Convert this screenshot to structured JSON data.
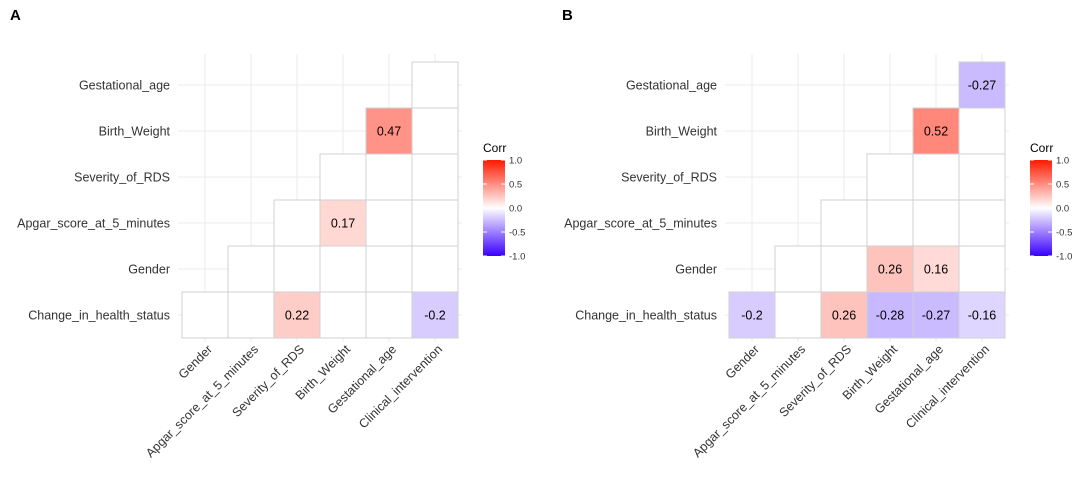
{
  "chart_data": [
    {
      "type": "heatmap",
      "panel_label": "A",
      "rows": [
        "Gestational_age",
        "Birth_Weight",
        "Severity_of_RDS",
        "Apgar_score_at_5_minutes",
        "Gender",
        "Change_in_health_status"
      ],
      "columns": [
        "Gender",
        "Apgar_score_at_5_minutes",
        "Severity_of_RDS",
        "Birth_Weight",
        "Gestational_age",
        "Clinical_intervention"
      ],
      "cells": [
        {
          "row": "Gestational_age",
          "col": "Clinical_intervention",
          "value": null,
          "label": ""
        },
        {
          "row": "Birth_Weight",
          "col": "Gestational_age",
          "value": 0.47,
          "label": "0.47"
        },
        {
          "row": "Birth_Weight",
          "col": "Clinical_intervention",
          "value": null,
          "label": ""
        },
        {
          "row": "Severity_of_RDS",
          "col": "Birth_Weight",
          "value": null,
          "label": ""
        },
        {
          "row": "Severity_of_RDS",
          "col": "Gestational_age",
          "value": null,
          "label": ""
        },
        {
          "row": "Severity_of_RDS",
          "col": "Clinical_intervention",
          "value": null,
          "label": ""
        },
        {
          "row": "Apgar_score_at_5_minutes",
          "col": "Severity_of_RDS",
          "value": null,
          "label": ""
        },
        {
          "row": "Apgar_score_at_5_minutes",
          "col": "Birth_Weight",
          "value": 0.17,
          "label": "0.17"
        },
        {
          "row": "Apgar_score_at_5_minutes",
          "col": "Gestational_age",
          "value": null,
          "label": ""
        },
        {
          "row": "Apgar_score_at_5_minutes",
          "col": "Clinical_intervention",
          "value": null,
          "label": ""
        },
        {
          "row": "Gender",
          "col": "Apgar_score_at_5_minutes",
          "value": null,
          "label": ""
        },
        {
          "row": "Gender",
          "col": "Severity_of_RDS",
          "value": null,
          "label": ""
        },
        {
          "row": "Gender",
          "col": "Birth_Weight",
          "value": null,
          "label": ""
        },
        {
          "row": "Gender",
          "col": "Gestational_age",
          "value": null,
          "label": ""
        },
        {
          "row": "Gender",
          "col": "Clinical_intervention",
          "value": null,
          "label": ""
        },
        {
          "row": "Change_in_health_status",
          "col": "Gender",
          "value": null,
          "label": ""
        },
        {
          "row": "Change_in_health_status",
          "col": "Apgar_score_at_5_minutes",
          "value": null,
          "label": ""
        },
        {
          "row": "Change_in_health_status",
          "col": "Severity_of_RDS",
          "value": 0.22,
          "label": "0.22"
        },
        {
          "row": "Change_in_health_status",
          "col": "Birth_Weight",
          "value": null,
          "label": ""
        },
        {
          "row": "Change_in_health_status",
          "col": "Gestational_age",
          "value": null,
          "label": ""
        },
        {
          "row": "Change_in_health_status",
          "col": "Clinical_intervention",
          "value": -0.2,
          "label": "-0.2"
        }
      ],
      "legend": {
        "title": "Corr",
        "ticks": [
          "1.0",
          "0.5",
          "0.0",
          "-0.5",
          "-1.0"
        ],
        "range": [
          -1,
          1
        ],
        "colors": {
          "low": "#3a00ff",
          "mid": "#ffffff",
          "high": "#ff1a00"
        }
      }
    },
    {
      "type": "heatmap",
      "panel_label": "B",
      "rows": [
        "Gestational_age",
        "Birth_Weight",
        "Severity_of_RDS",
        "Apgar_score_at_5_minutes",
        "Gender",
        "Change_in_health_status"
      ],
      "columns": [
        "Gender",
        "Apgar_score_at_5_minutes",
        "Severity_of_RDS",
        "Birth_Weight",
        "Gestational_age",
        "Clinical_intervention"
      ],
      "cells": [
        {
          "row": "Gestational_age",
          "col": "Clinical_intervention",
          "value": -0.27,
          "label": "-0.27"
        },
        {
          "row": "Birth_Weight",
          "col": "Gestational_age",
          "value": 0.52,
          "label": "0.52"
        },
        {
          "row": "Birth_Weight",
          "col": "Clinical_intervention",
          "value": null,
          "label": ""
        },
        {
          "row": "Severity_of_RDS",
          "col": "Birth_Weight",
          "value": null,
          "label": ""
        },
        {
          "row": "Severity_of_RDS",
          "col": "Gestational_age",
          "value": null,
          "label": ""
        },
        {
          "row": "Severity_of_RDS",
          "col": "Clinical_intervention",
          "value": null,
          "label": ""
        },
        {
          "row": "Apgar_score_at_5_minutes",
          "col": "Severity_of_RDS",
          "value": null,
          "label": ""
        },
        {
          "row": "Apgar_score_at_5_minutes",
          "col": "Birth_Weight",
          "value": null,
          "label": ""
        },
        {
          "row": "Apgar_score_at_5_minutes",
          "col": "Gestational_age",
          "value": null,
          "label": ""
        },
        {
          "row": "Apgar_score_at_5_minutes",
          "col": "Clinical_intervention",
          "value": null,
          "label": ""
        },
        {
          "row": "Gender",
          "col": "Apgar_score_at_5_minutes",
          "value": null,
          "label": ""
        },
        {
          "row": "Gender",
          "col": "Severity_of_RDS",
          "value": null,
          "label": ""
        },
        {
          "row": "Gender",
          "col": "Birth_Weight",
          "value": 0.26,
          "label": "0.26"
        },
        {
          "row": "Gender",
          "col": "Gestational_age",
          "value": 0.16,
          "label": "0.16"
        },
        {
          "row": "Gender",
          "col": "Clinical_intervention",
          "value": null,
          "label": ""
        },
        {
          "row": "Change_in_health_status",
          "col": "Gender",
          "value": -0.2,
          "label": "-0.2"
        },
        {
          "row": "Change_in_health_status",
          "col": "Apgar_score_at_5_minutes",
          "value": null,
          "label": ""
        },
        {
          "row": "Change_in_health_status",
          "col": "Severity_of_RDS",
          "value": 0.26,
          "label": "0.26"
        },
        {
          "row": "Change_in_health_status",
          "col": "Birth_Weight",
          "value": -0.28,
          "label": "-0.28"
        },
        {
          "row": "Change_in_health_status",
          "col": "Gestational_age",
          "value": -0.27,
          "label": "-0.27"
        },
        {
          "row": "Change_in_health_status",
          "col": "Clinical_intervention",
          "value": -0.16,
          "label": "-0.16"
        }
      ],
      "legend": {
        "title": "Corr",
        "ticks": [
          "1.0",
          "0.5",
          "0.0",
          "-0.5",
          "-1.0"
        ],
        "range": [
          -1,
          1
        ],
        "colors": {
          "low": "#3a00ff",
          "mid": "#ffffff",
          "high": "#ff1a00"
        }
      }
    }
  ]
}
